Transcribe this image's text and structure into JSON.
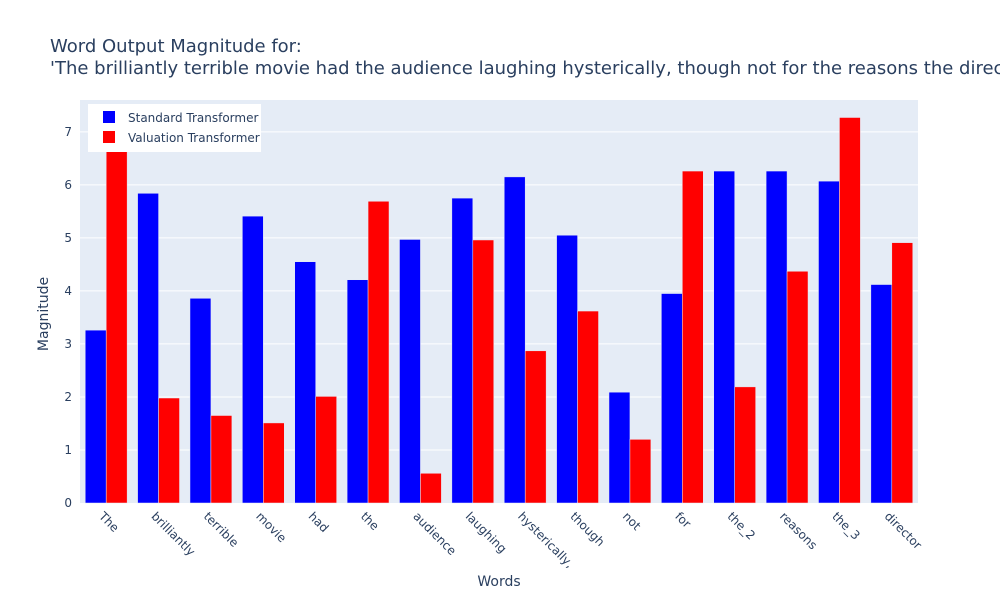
{
  "chart_data": {
    "type": "bar",
    "title_line1": "Word Output Magnitude for:",
    "title_line2": "'The brilliantly terrible movie had the audience laughing hysterically, though not for the reasons the director intended'",
    "xlabel": "Words",
    "ylabel": "Magnitude",
    "ylim": [
      0,
      7.6
    ],
    "yticks": [
      0,
      1,
      2,
      3,
      4,
      5,
      6,
      7
    ],
    "grid": true,
    "legend_position": "top-left",
    "categories": [
      "The",
      "brilliantly",
      "terrible",
      "movie",
      "had",
      "the",
      "audience",
      "laughing",
      "hysterically,",
      "though",
      "not",
      "for",
      "the_2",
      "reasons",
      "the_3",
      "director"
    ],
    "series": [
      {
        "name": "Standard Transformer",
        "color": "#0000ff",
        "values": [
          3.26,
          5.84,
          3.86,
          5.41,
          4.55,
          4.21,
          4.97,
          5.75,
          6.15,
          5.05,
          2.09,
          3.95,
          6.26,
          6.26,
          6.07,
          4.12
        ]
      },
      {
        "name": "Valuation Transformer",
        "color": "#ff0000",
        "values": [
          6.68,
          1.98,
          1.65,
          1.51,
          2.01,
          5.69,
          0.56,
          4.96,
          2.87,
          3.62,
          1.2,
          6.26,
          2.19,
          4.37,
          7.27,
          4.91
        ]
      }
    ],
    "colors": {
      "plot_bg": "#e5ecf6",
      "grid": "#ffffff",
      "text": "#2a3f5f"
    }
  }
}
